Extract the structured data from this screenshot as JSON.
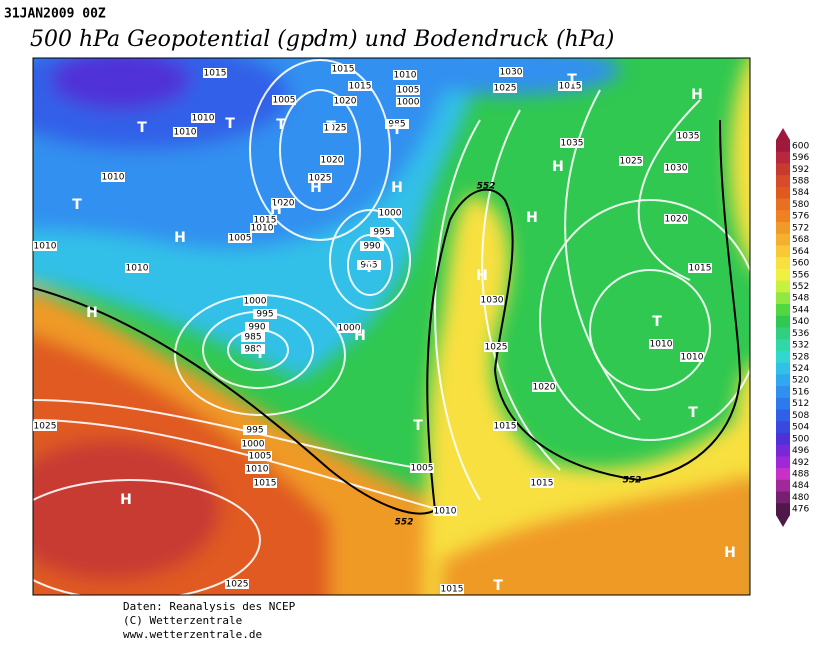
{
  "header": {
    "date": "31JAN2009 00Z",
    "title": "500 hPa Geopotential (gpdm) und Bodendruck (hPa)"
  },
  "colorbar": {
    "ticks": [
      600,
      596,
      592,
      588,
      584,
      580,
      576,
      572,
      568,
      564,
      560,
      556,
      552,
      548,
      544,
      540,
      536,
      532,
      528,
      524,
      520,
      516,
      512,
      508,
      504,
      500,
      496,
      492,
      488,
      484,
      480,
      476
    ],
    "colors": [
      "#a0183c",
      "#b8283c",
      "#c83a30",
      "#d84a28",
      "#e05a20",
      "#e87020",
      "#f08020",
      "#f09a28",
      "#f5b030",
      "#f8c838",
      "#f8e040",
      "#f0f040",
      "#c8f040",
      "#90e840",
      "#50d840",
      "#30c850",
      "#30d080",
      "#30d8a8",
      "#30d8d0",
      "#30c0e8",
      "#30a8f0",
      "#3090f0",
      "#3078f0",
      "#3060e8",
      "#3848e0",
      "#5030d8",
      "#7828d8",
      "#a028d8",
      "#c830c8",
      "#a02898",
      "#782070",
      "#501848"
    ]
  },
  "isobar_labels": [
    "1015",
    "1015",
    "1010",
    "1030",
    "1015",
    "1005",
    "1010",
    "1010",
    "1020",
    "1005",
    "1000",
    "1025",
    "1015",
    "1025",
    "985",
    "1035",
    "1035",
    "1025",
    "1030",
    "1010",
    "1020",
    "1025",
    "1020",
    "1015",
    "1010",
    "1005",
    "1000",
    "995",
    "990",
    "985",
    "1010",
    "1010",
    "1020",
    "1015",
    "1000",
    "995",
    "990",
    "985",
    "980",
    "1000",
    "1030",
    "1025",
    "1010",
    "1010",
    "1020",
    "1015",
    "995",
    "1000",
    "1005",
    "1010",
    "1015",
    "1005",
    "1015",
    "1010",
    "1025",
    "1025",
    "1015"
  ],
  "pressure_centers": [
    "T",
    "T",
    "T",
    "H",
    "T",
    "H",
    "H",
    "T",
    "T",
    "H",
    "H",
    "H",
    "T",
    "H",
    "T",
    "H",
    "H",
    "H",
    "T",
    "T",
    "T",
    "T",
    "H",
    "T",
    "H"
  ],
  "height_labels": [
    "552",
    "552",
    "552"
  ],
  "footer": [
    "Daten: Reanalysis des NCEP",
    "(C) Wetterzentrale",
    "www.wetterzentrale.de"
  ]
}
